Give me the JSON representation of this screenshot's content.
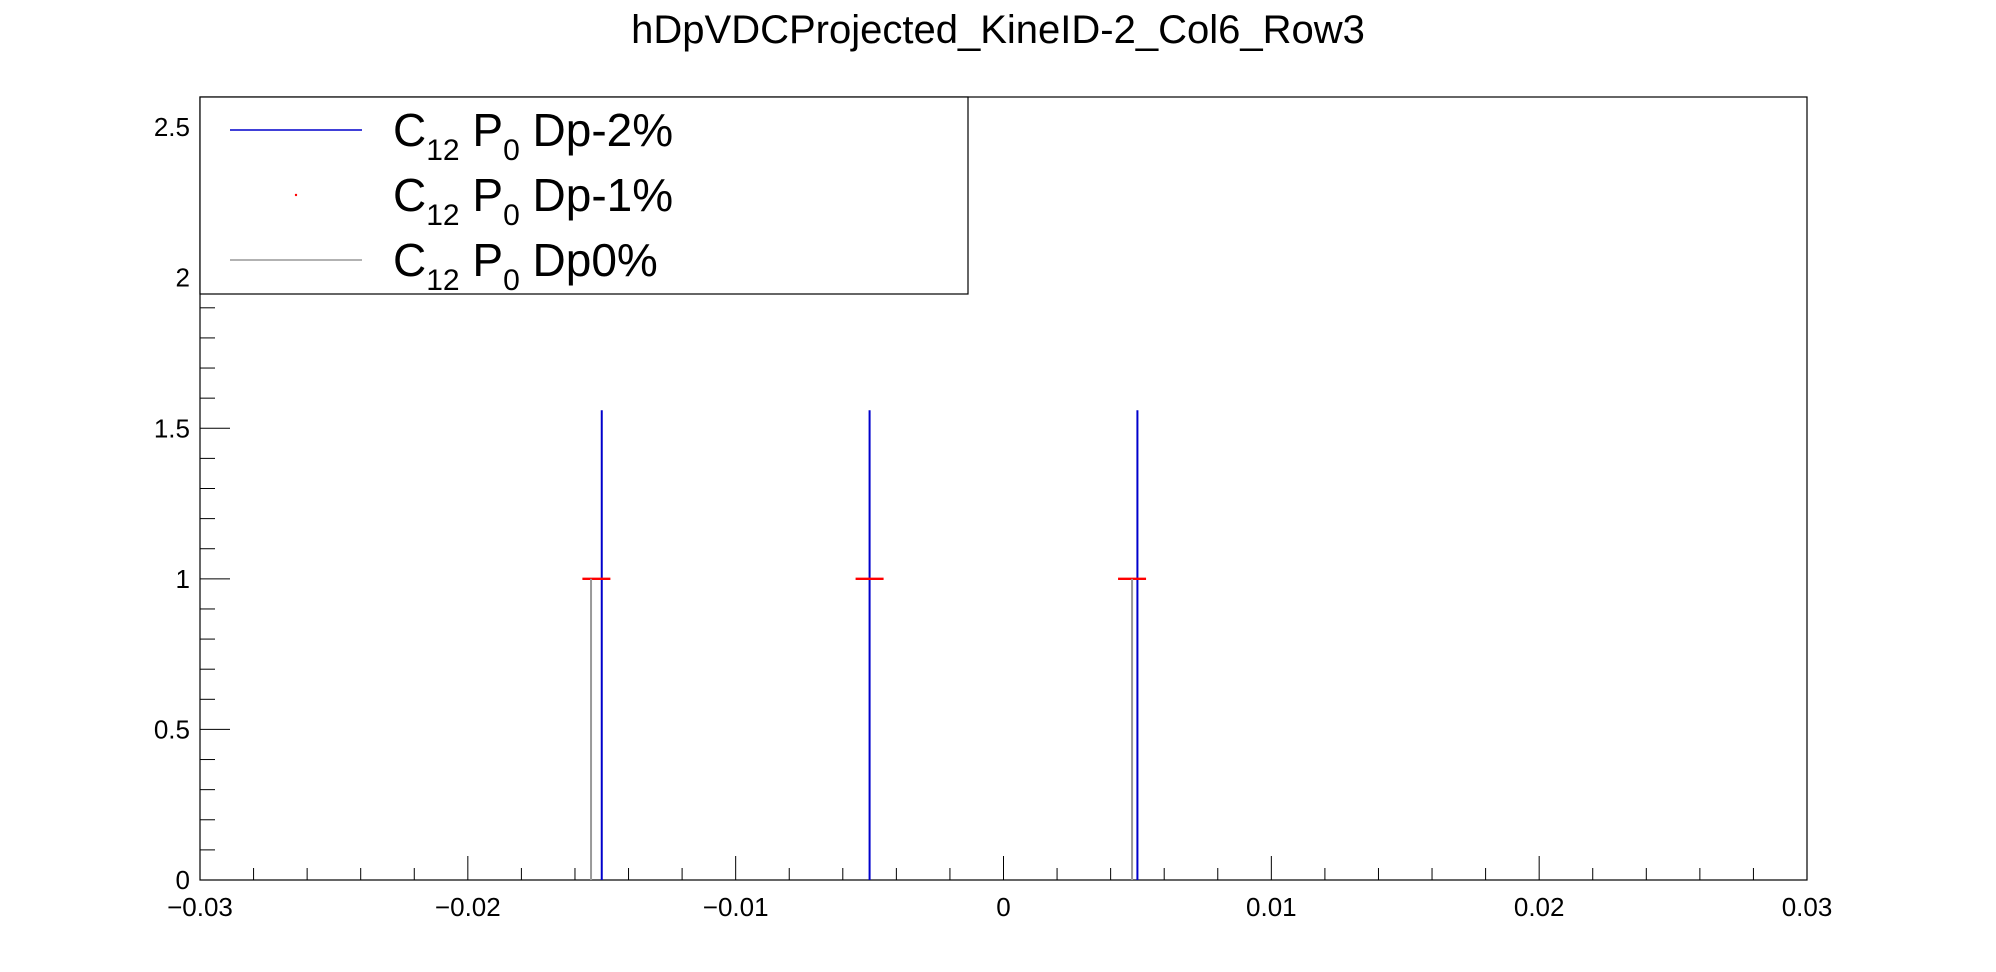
{
  "title": "hDpVDCProjected_KineID-2_Col6_Row3",
  "chart_data": {
    "type": "histogram",
    "title": "hDpVDCProjected_KineID-2_Col6_Row3",
    "xlabel": "",
    "ylabel": "",
    "xlim": [
      -0.03,
      0.03
    ],
    "ylim": [
      0,
      2.6
    ],
    "grid": false,
    "legend_position": "top-left",
    "x_ticks": [
      "−0.03",
      "−0.02",
      "−0.01",
      "0",
      "0.01",
      "0.02",
      "0.03"
    ],
    "x_tick_values": [
      -0.03,
      -0.02,
      -0.01,
      0,
      0.01,
      0.02,
      0.03
    ],
    "y_ticks": [
      "0",
      "0.5",
      "1",
      "1.5",
      "2",
      "2.5"
    ],
    "y_tick_values": [
      0,
      0.5,
      1,
      1.5,
      2,
      2.5
    ],
    "series": [
      {
        "name": "Dp-2%",
        "legend": {
          "base": "C",
          "sub1": "12",
          "mid": " P",
          "sub2": "0",
          "tail": " Dp-2%"
        },
        "color": "#0000cc",
        "style": "line",
        "x": [
          -0.015,
          -0.005,
          0.005
        ],
        "y": [
          1,
          1,
          1
        ],
        "error": [
          0.56,
          0.56,
          0.56
        ]
      },
      {
        "name": "Dp-1%",
        "legend": {
          "base": "C",
          "sub1": "12",
          "mid": " P",
          "sub2": "0",
          "tail": " Dp-1%"
        },
        "color": "#ff0000",
        "style": "marker",
        "x": [
          -0.0152,
          -0.005,
          0.0048
        ],
        "y": [
          1,
          1,
          1
        ]
      },
      {
        "name": "Dp0%",
        "legend": {
          "base": "C",
          "sub1": "12",
          "mid": " P",
          "sub2": "0",
          "tail": " Dp0%"
        },
        "color": "#999999",
        "style": "line",
        "x": [
          -0.0154,
          0.0048
        ],
        "y": [
          1,
          1
        ]
      }
    ]
  }
}
